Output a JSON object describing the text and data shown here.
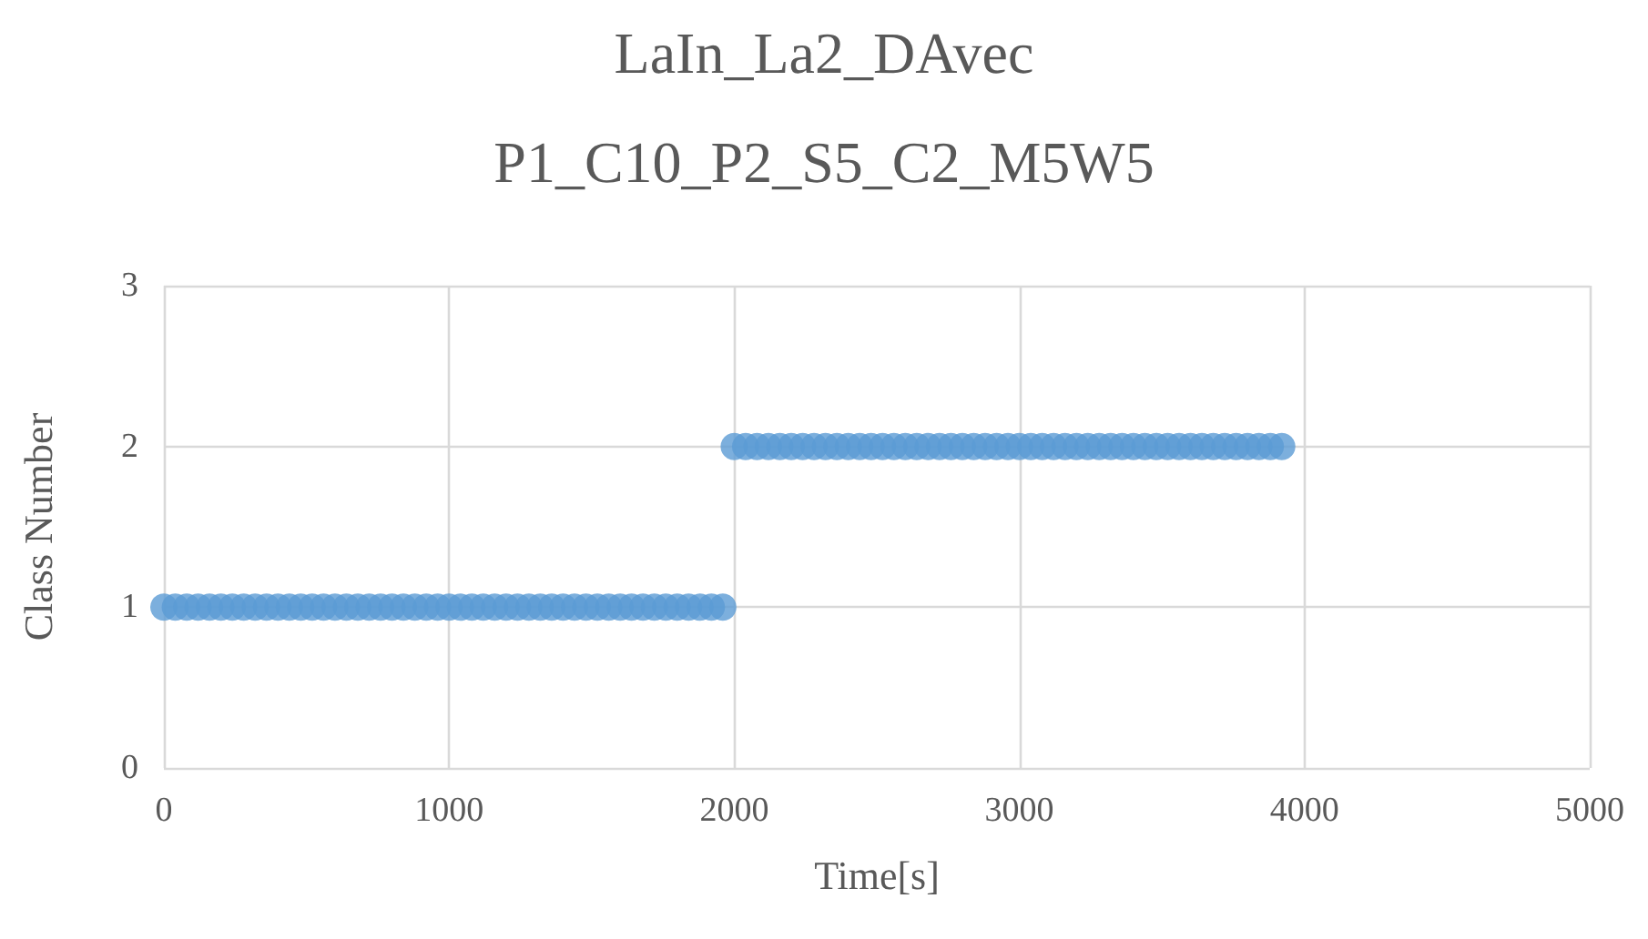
{
  "chart_data": {
    "type": "scatter",
    "title": "LaIn_La2_DAvec",
    "subtitle": "P1_C10_P2_S5_C2_M5W5",
    "xlabel": "Time[s]",
    "ylabel": "Class Number",
    "xlim": [
      0,
      5000
    ],
    "xticks": [
      0,
      1000,
      2000,
      3000,
      4000,
      5000
    ],
    "ylim": [
      0,
      3
    ],
    "yticks": [
      0,
      1,
      2,
      3
    ],
    "grid": true,
    "marker": "circle",
    "series": [
      {
        "color": "#5b9bd5",
        "x": [
          0,
          40,
          80,
          120,
          160,
          200,
          240,
          280,
          320,
          360,
          400,
          440,
          480,
          520,
          560,
          600,
          640,
          680,
          720,
          760,
          800,
          840,
          880,
          920,
          960,
          1000,
          1040,
          1080,
          1120,
          1160,
          1200,
          1240,
          1280,
          1320,
          1360,
          1400,
          1440,
          1480,
          1520,
          1560,
          1600,
          1640,
          1680,
          1720,
          1760,
          1800,
          1840,
          1880,
          1920,
          1960,
          2000,
          2040,
          2080,
          2120,
          2160,
          2200,
          2240,
          2280,
          2320,
          2360,
          2400,
          2440,
          2480,
          2520,
          2560,
          2600,
          2640,
          2680,
          2720,
          2760,
          2800,
          2840,
          2880,
          2920,
          2960,
          3000,
          3040,
          3080,
          3120,
          3160,
          3200,
          3240,
          3280,
          3320,
          3360,
          3400,
          3440,
          3480,
          3520,
          3560,
          3600,
          3640,
          3680,
          3720,
          3760,
          3800,
          3840,
          3880,
          3920
        ],
        "values": [
          1,
          1,
          1,
          1,
          1,
          1,
          1,
          1,
          1,
          1,
          1,
          1,
          1,
          1,
          1,
          1,
          1,
          1,
          1,
          1,
          1,
          1,
          1,
          1,
          1,
          1,
          1,
          1,
          1,
          1,
          1,
          1,
          1,
          1,
          1,
          1,
          1,
          1,
          1,
          1,
          1,
          1,
          1,
          1,
          1,
          1,
          1,
          1,
          1,
          1,
          2,
          2,
          2,
          2,
          2,
          2,
          2,
          2,
          2,
          2,
          2,
          2,
          2,
          2,
          2,
          2,
          2,
          2,
          2,
          2,
          2,
          2,
          2,
          2,
          2,
          2,
          2,
          2,
          2,
          2,
          2,
          2,
          2,
          2,
          2,
          2,
          2,
          2,
          2,
          2,
          2,
          2,
          2,
          2,
          2,
          2,
          2,
          2,
          2
        ]
      }
    ]
  }
}
